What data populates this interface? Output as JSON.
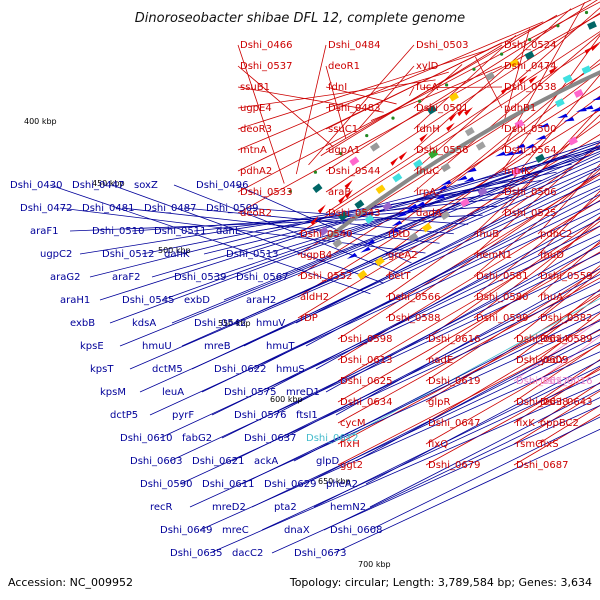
{
  "title": "Dinoroseobacter shibae DFL 12, complete genome",
  "footer": {
    "accession": "Accession: NC_009952",
    "summary": "Topology: circular; Length: 3,789,584 bp; Genes: 3,634"
  },
  "colors": {
    "forward_gene": "#e60000",
    "reverse_gene": "#0000dd",
    "forward_label": "#cc0000",
    "reverse_label": "#000099",
    "highlight_label": "#44bbcc",
    "pink_label": "#ee88cc",
    "backbone": "#888888",
    "tick_marker": "#228822"
  },
  "position_ticks": [
    "400 kbp",
    "450 kbp",
    "500 kbp",
    "550 kbp",
    "600 kbp",
    "650 kbp",
    "700 kbp"
  ],
  "labels_forward": [
    "Dshi_0466",
    "Dshi_0484",
    "Dshi_0503",
    "Dshi_0524",
    "Dshi_0537",
    "deoR1",
    "xylD",
    "Dshi_0474",
    "ssuB1",
    "fdnI",
    "fucA",
    "Dshi_0538",
    "ugpE4",
    "Dshi_0483",
    "Dshi_0501",
    "pdhB1",
    "deoR3",
    "ssuC1",
    "fdnH",
    "Dshi_0500",
    "mtnA",
    "ugpA1",
    "Dshi_0556",
    "Dshi_0564",
    "pdhA2",
    "Dshi_0544",
    "fhuC",
    "mtnK",
    "Dshi_0533",
    "araB",
    "irpA",
    "Dshi_0506",
    "deoR2",
    "Dshi_0543",
    "dadA",
    "Dshi_0525",
    "Dshi_0540",
    "rbtD",
    "fhuB",
    "pdhC2",
    "ugpB4",
    "greA2",
    "hemN1",
    "fhuD",
    "Dshi_0552",
    "betT",
    "Dshi_0581",
    "Dshi_0559",
    "aldH2",
    "Dshi_0566",
    "Dshi_0580",
    "fhuA",
    "rDP",
    "Dshi_0588",
    "Dshi_0599",
    "Dshi_0582",
    "Dshi_0598",
    "Dshi_0616",
    "Dshi_0614",
    "Dshi_0589",
    "Dshi_0613",
    "nadE",
    "Dshi_0609",
    "yedY",
    "Dshi_0625",
    "Dshi_0619",
    "Dshi_0617",
    "Dshi_0016",
    "Dshi_0634",
    "glpR",
    "Dshi_0638",
    "Dshi_0643",
    "cycM",
    "Dshi_0647",
    "fixK",
    "oppBC2",
    "fixH",
    "fixQ",
    "rsmC",
    "fixS",
    "ggt2",
    "Dshi_0679",
    "Dshi_0687"
  ],
  "labels_reverse": [
    "Dshi_0430",
    "Dshi_0447",
    "soxZ",
    "Dshi_0496",
    "Dshi_0472",
    "Dshi_0481",
    "Dshi_0487",
    "Dshi_0509",
    "araF1",
    "Dshi_0510",
    "Dshi_0511",
    "dahL",
    "ugpC2",
    "Dshi_0512",
    "dahK",
    "Dshi_0513",
    "araG2",
    "araF2",
    "Dshi_0539",
    "Dshi_0567",
    "araH1",
    "Dshi_0545",
    "exbD",
    "araH2",
    "exbB",
    "kdsA",
    "Dshi_0542",
    "hmuV",
    "kpsE",
    "hmuU",
    "mreB",
    "hmuT",
    "kpsT",
    "dctM5",
    "Dshi_0622",
    "hmuS",
    "kpsM",
    "leuA",
    "Dshi_0575",
    "mreD1",
    "dctP5",
    "pyrF",
    "Dshi_0576",
    "ftsI1",
    "Dshi_0610",
    "fabG2",
    "Dshi_0637",
    "Dshi_0612",
    "Dshi_0603",
    "Dshi_0621",
    "ackA",
    "glpD",
    "Dshi_0590",
    "Dshi_0611",
    "Dshi_0629",
    "pheA2",
    "recR",
    "mreD2",
    "pta2",
    "hemN2",
    "Dshi_0649",
    "mreC",
    "dnaX",
    "Dshi_0608",
    "Dshi_0635",
    "dacC2",
    "Dshi_0673"
  ]
}
